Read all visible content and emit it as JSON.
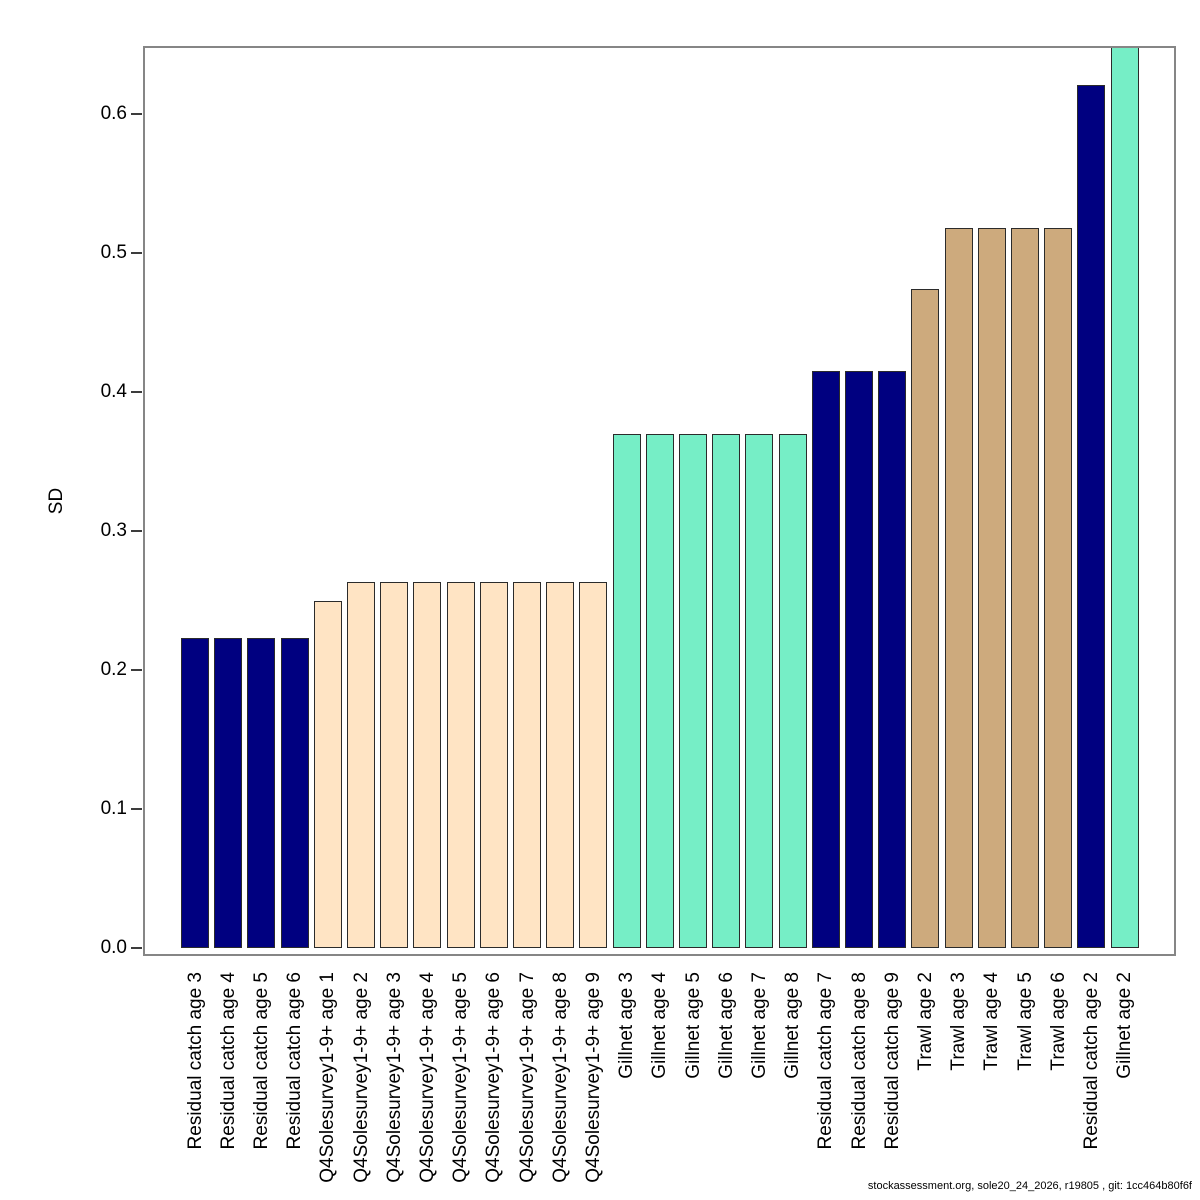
{
  "chart_data": {
    "type": "bar",
    "title": "",
    "xlabel": "",
    "ylabel": "SD",
    "ylim": [
      0,
      0.649
    ],
    "yticks": [
      "0.0",
      "0.1",
      "0.2",
      "0.3",
      "0.4",
      "0.5",
      "0.6"
    ],
    "ytick_values": [
      0,
      0.1,
      0.2,
      0.3,
      0.4,
      0.5,
      0.6
    ],
    "grid": false,
    "legend": null,
    "categories": [
      "Residual catch age 3",
      "Residual catch age 4",
      "Residual catch age 5",
      "Residual catch age 6",
      "Q4Solesurvey1-9+ age 1",
      "Q4Solesurvey1-9+ age 2",
      "Q4Solesurvey1-9+ age 3",
      "Q4Solesurvey1-9+ age 4",
      "Q4Solesurvey1-9+ age 5",
      "Q4Solesurvey1-9+ age 6",
      "Q4Solesurvey1-9+ age 7",
      "Q4Solesurvey1-9+ age 8",
      "Q4Solesurvey1-9+ age 9",
      "Gillnet age 3",
      "Gillnet age 4",
      "Gillnet age 5",
      "Gillnet age 6",
      "Gillnet age 7",
      "Gillnet age 8",
      "Residual catch age 7",
      "Residual catch age 8",
      "Residual catch age 9",
      "Trawl age 2",
      "Trawl age 3",
      "Trawl age 4",
      "Trawl age 5",
      "Trawl age 6",
      "Residual catch age 2",
      "Gillnet age 2"
    ],
    "values": [
      0.223,
      0.223,
      0.223,
      0.223,
      0.25,
      0.263,
      0.263,
      0.263,
      0.263,
      0.263,
      0.263,
      0.263,
      0.263,
      0.37,
      0.37,
      0.37,
      0.37,
      0.37,
      0.37,
      0.415,
      0.415,
      0.415,
      0.474,
      0.518,
      0.518,
      0.518,
      0.518,
      0.621,
      0.65
    ],
    "bar_colors": [
      "#000080",
      "#000080",
      "#000080",
      "#000080",
      "#FFE4C4",
      "#FFE4C4",
      "#FFE4C4",
      "#FFE4C4",
      "#FFE4C4",
      "#FFE4C4",
      "#FFE4C4",
      "#FFE4C4",
      "#FFE4C4",
      "#76EEC6",
      "#76EEC6",
      "#76EEC6",
      "#76EEC6",
      "#76EEC6",
      "#76EEC6",
      "#000080",
      "#000080",
      "#000080",
      "#CDAA7D",
      "#CDAA7D",
      "#CDAA7D",
      "#CDAA7D",
      "#CDAA7D",
      "#000080",
      "#76EEC6"
    ],
    "fleet_colors": {
      "Residual catch": "#000080",
      "Q4Solesurvey1-9+": "#FFE4C4",
      "Gillnet": "#76EEC6",
      "Trawl": "#CDAA7D"
    },
    "clipped_bars": [
      "Gillnet age 2"
    ]
  },
  "footer": {
    "text": "stockassessment.org, sole20_24_2026, r19805 , git: 1cc464b80f6f"
  },
  "colors": {
    "background": "#FFFFFF",
    "plot_box_border": "#868686",
    "bar_outline": "#2B2B2B",
    "text": "#000000"
  }
}
